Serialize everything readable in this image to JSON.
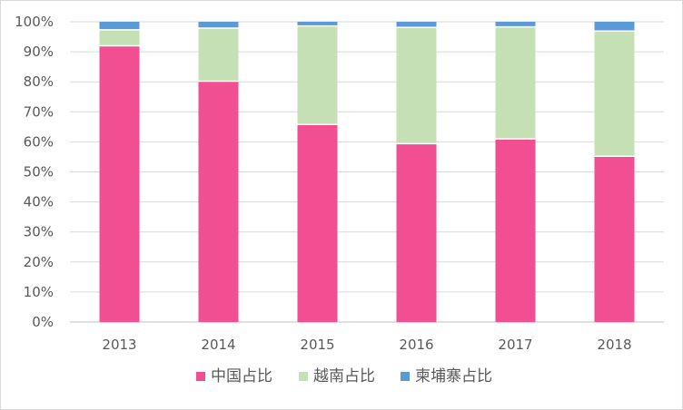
{
  "chart_data": {
    "type": "bar",
    "stacked": true,
    "categories": [
      "2013",
      "2014",
      "2015",
      "2016",
      "2017",
      "2018"
    ],
    "series": [
      {
        "name": "中国占比",
        "color": "#f24e92",
        "values": [
          92,
          80.2,
          65.8,
          59.4,
          61,
          55.2
        ]
      },
      {
        "name": "越南占比",
        "color": "#c5e0b4",
        "values": [
          5.3,
          17.7,
          32.8,
          38.7,
          37.3,
          41.7
        ]
      },
      {
        "name": "柬埔寨占比",
        "color": "#5b9bd5",
        "values": [
          2.7,
          2.1,
          1.4,
          1.9,
          1.7,
          3.1
        ]
      }
    ],
    "y_ticks": [
      "0%",
      "10%",
      "20%",
      "30%",
      "40%",
      "50%",
      "60%",
      "70%",
      "80%",
      "90%",
      "100%"
    ],
    "ylim": [
      0,
      100
    ],
    "grid": true,
    "legend_position": "bottom"
  }
}
